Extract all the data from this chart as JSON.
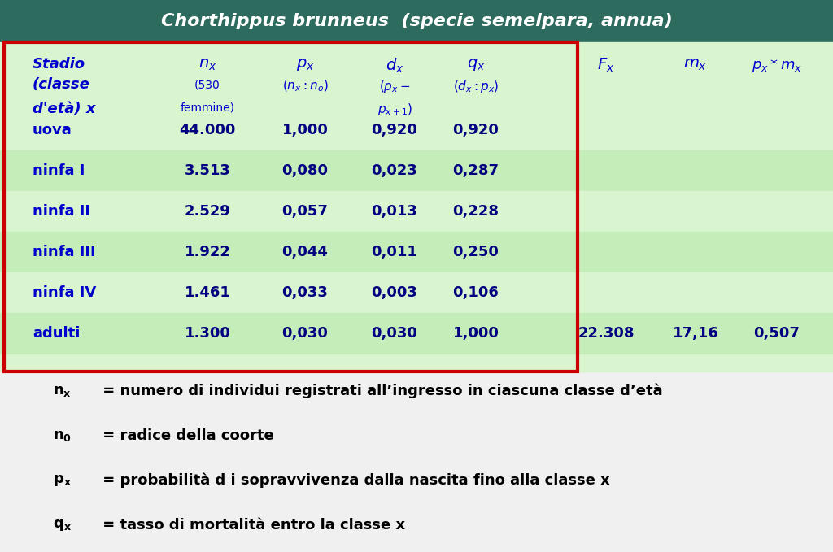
{
  "title": "Chorthippus brunneus  (specie semelpara, annua)",
  "title_bg": "#2d6b5e",
  "title_color": "#ffffff",
  "table_bg": "#d9f5d0",
  "table_bg_alt": "#c5edba",
  "red_border_color": "#cc0000",
  "header_color": "#0000cc",
  "data_color": "#000080",
  "note_color": "#000000",
  "rows": [
    [
      "uova",
      "44.000",
      "1,000",
      "0,920",
      "0,920",
      "",
      "",
      ""
    ],
    [
      "ninfa I",
      "3.513",
      "0,080",
      "0,023",
      "0,287",
      "",
      "",
      ""
    ],
    [
      "ninfa II",
      "2.529",
      "0,057",
      "0,013",
      "0,228",
      "",
      "",
      ""
    ],
    [
      "ninfa III",
      "1.922",
      "0,044",
      "0,011",
      "0,250",
      "",
      "",
      ""
    ],
    [
      "ninfa IV",
      "1.461",
      "0,033",
      "0,003",
      "0,106",
      "",
      "",
      ""
    ],
    [
      "adulti",
      "1.300",
      "0,030",
      "0,030",
      "1,000",
      "22.308",
      "17,16",
      "0,507"
    ]
  ],
  "notes": [
    [
      "n",
      "x",
      " = numero di individui registrati all’ingresso in ciascuna classe d’età"
    ],
    [
      "n",
      "0",
      " = radice della coorte"
    ],
    [
      "p",
      "x",
      " = probabilità d i sopravvivenza dalla nascita fino alla classe x"
    ],
    [
      "q",
      "x",
      " = tasso di mortalità entro la classe x"
    ]
  ]
}
